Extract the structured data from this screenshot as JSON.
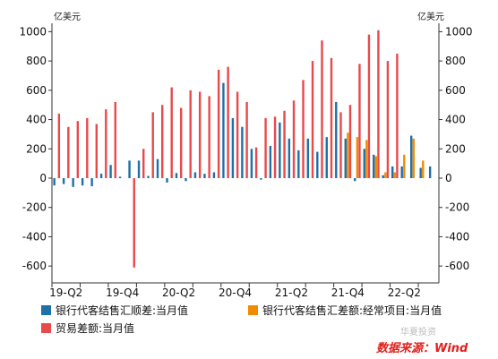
{
  "chart_data": {
    "type": "bar",
    "y_unit_left": "亿美元",
    "y_unit_right": "亿美元",
    "ylim": [
      -700,
      1000
    ],
    "yticks": [
      1000,
      800,
      600,
      400,
      200,
      0,
      -200,
      -400,
      -600
    ],
    "x_tick_labels": [
      "19-Q2",
      "19-Q4",
      "20-Q2",
      "20-Q4",
      "21-Q2",
      "21-Q4",
      "22-Q2"
    ],
    "months": [
      "2019-04",
      "2019-05",
      "2019-06",
      "2019-07",
      "2019-08",
      "2019-09",
      "2019-10",
      "2019-11",
      "2019-12",
      "2020-01",
      "2020-02",
      "2020-03",
      "2020-04",
      "2020-05",
      "2020-06",
      "2020-07",
      "2020-08",
      "2020-09",
      "2020-10",
      "2020-11",
      "2020-12",
      "2021-01",
      "2021-02",
      "2021-03",
      "2021-04",
      "2021-05",
      "2021-06",
      "2021-07",
      "2021-08",
      "2021-09",
      "2021-10",
      "2021-11",
      "2021-12",
      "2022-01",
      "2022-02",
      "2022-03",
      "2022-04",
      "2022-05",
      "2022-06",
      "2022-07",
      "2022-08"
    ],
    "series": [
      {
        "name": "银行代客结售汇顺差:当月值",
        "color": "#1f6fa8",
        "values": [
          -50,
          -40,
          -60,
          -50,
          -55,
          30,
          90,
          10,
          120,
          120,
          15,
          130,
          -30,
          35,
          -20,
          40,
          30,
          40,
          650,
          410,
          350,
          200,
          -10,
          220,
          380,
          270,
          190,
          270,
          180,
          280,
          520,
          270,
          -20,
          200,
          160,
          20,
          80,
          80,
          290,
          70,
          80
        ]
      },
      {
        "name": "银行代客结售汇差额:经常项目:当月值",
        "color": "#f08c00",
        "values": [
          null,
          null,
          null,
          null,
          null,
          null,
          null,
          null,
          null,
          null,
          null,
          null,
          null,
          null,
          null,
          null,
          null,
          null,
          null,
          null,
          null,
          null,
          null,
          null,
          null,
          null,
          null,
          null,
          null,
          null,
          null,
          310,
          280,
          260,
          150,
          40,
          40,
          160,
          270,
          120,
          null
        ]
      },
      {
        "name": "贸易差额:当月值",
        "color": "#e8494b",
        "values": [
          440,
          350,
          390,
          410,
          370,
          470,
          520,
          null,
          -610,
          200,
          450,
          500,
          620,
          480,
          600,
          590,
          560,
          740,
          760,
          590,
          520,
          210,
          410,
          420,
          460,
          530,
          670,
          800,
          940,
          820,
          450,
          500,
          780,
          980,
          1010,
          800,
          850,
          null,
          null,
          null,
          null
        ]
      }
    ]
  },
  "watermark": "华夏投资",
  "source": "数据来源：Wind"
}
